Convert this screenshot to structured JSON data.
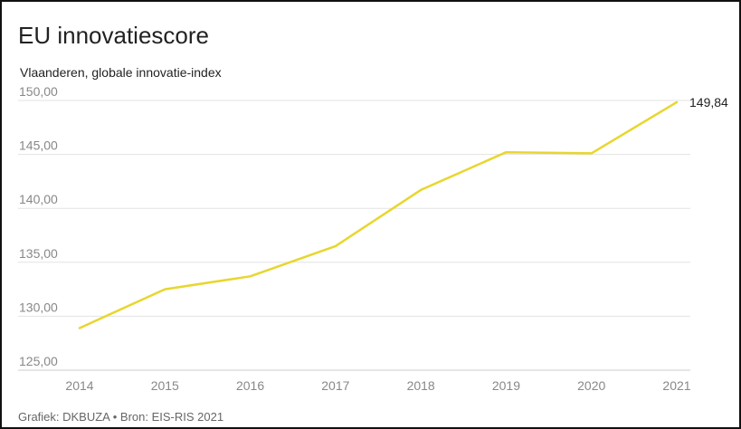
{
  "header": {
    "title": "EU innovatiescore",
    "subtitle": "Vlaanderen, globale innovatie-index"
  },
  "footer": {
    "text": "Grafiek: DKBUZA • Bron: EIS-RIS 2021"
  },
  "colors": {
    "line": "#e8d62e",
    "grid": "#e3e3e3",
    "axis": "#cccccc"
  },
  "chart_data": {
    "type": "line",
    "title": "EU innovatiescore",
    "subtitle": "Vlaanderen, globale innovatie-index",
    "x": [
      "2014",
      "2015",
      "2016",
      "2017",
      "2018",
      "2019",
      "2020",
      "2021"
    ],
    "series": [
      {
        "values": [
          128.9,
          132.5,
          133.7,
          136.5,
          141.7,
          145.2,
          145.1,
          149.84
        ]
      }
    ],
    "ylim": [
      125,
      150
    ],
    "yticks": [
      125,
      130,
      135,
      140,
      145,
      150
    ],
    "ytick_labels": [
      "125,00",
      "130,00",
      "135,00",
      "140,00",
      "145,00",
      "150,00"
    ],
    "end_label": "149,84",
    "grid": true,
    "legend": "none"
  }
}
